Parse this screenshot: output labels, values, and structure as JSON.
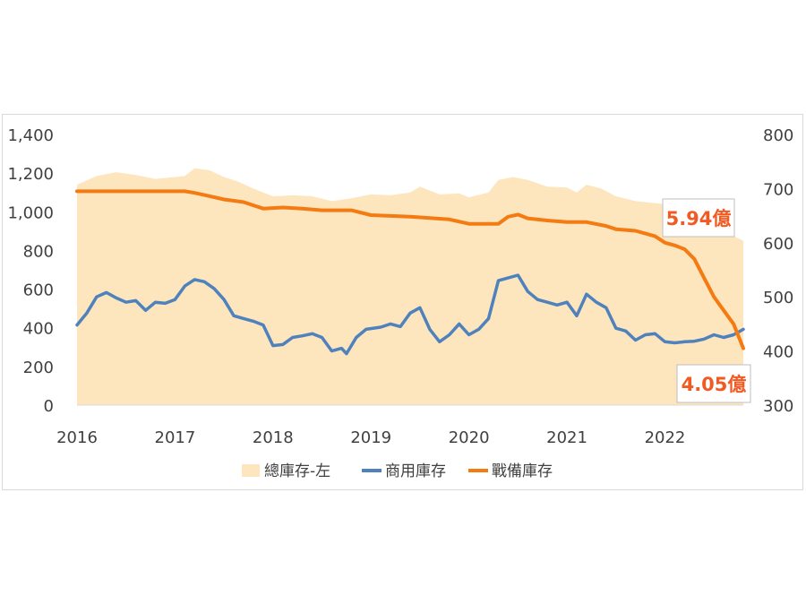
{
  "colors": {
    "total_fill": "#fde6bd",
    "commercial": "#4f81bd",
    "strategic": "#f47a12",
    "callout_text": "#f15a22",
    "tick_text": "#404040"
  },
  "chart_data": {
    "type": "line",
    "x_type": "time",
    "x_ticks": [
      "2016",
      "2017",
      "2018",
      "2019",
      "2020",
      "2021",
      "2022"
    ],
    "xlim": [
      2016.0,
      2022.8
    ],
    "left_axis": {
      "ylim": [
        0,
        1400
      ],
      "ticks": [
        "0",
        "200",
        "400",
        "600",
        "800",
        "1,000",
        "1,200",
        "1,400"
      ]
    },
    "right_axis": {
      "ylim": [
        300,
        800
      ],
      "ticks": [
        "300",
        "400",
        "500",
        "600",
        "700",
        "800"
      ]
    },
    "grid": false,
    "legend_position": "bottom",
    "series": [
      {
        "name": "總庫存-左",
        "kind": "area",
        "axis": "left",
        "points": [
          [
            2016.0,
            1140
          ],
          [
            2016.2,
            1185
          ],
          [
            2016.4,
            1205
          ],
          [
            2016.6,
            1190
          ],
          [
            2016.8,
            1170
          ],
          [
            2017.0,
            1180
          ],
          [
            2017.1,
            1185
          ],
          [
            2017.2,
            1225
          ],
          [
            2017.35,
            1215
          ],
          [
            2017.5,
            1180
          ],
          [
            2017.65,
            1155
          ],
          [
            2017.8,
            1120
          ],
          [
            2018.0,
            1080
          ],
          [
            2018.2,
            1085
          ],
          [
            2018.4,
            1080
          ],
          [
            2018.6,
            1055
          ],
          [
            2018.8,
            1070
          ],
          [
            2019.0,
            1090
          ],
          [
            2019.2,
            1085
          ],
          [
            2019.4,
            1100
          ],
          [
            2019.5,
            1130
          ],
          [
            2019.7,
            1090
          ],
          [
            2019.9,
            1095
          ],
          [
            2020.0,
            1075
          ],
          [
            2020.2,
            1100
          ],
          [
            2020.3,
            1165
          ],
          [
            2020.45,
            1180
          ],
          [
            2020.6,
            1165
          ],
          [
            2020.8,
            1130
          ],
          [
            2021.0,
            1125
          ],
          [
            2021.1,
            1100
          ],
          [
            2021.2,
            1140
          ],
          [
            2021.35,
            1120
          ],
          [
            2021.5,
            1080
          ],
          [
            2021.7,
            1055
          ],
          [
            2021.9,
            1045
          ],
          [
            2022.0,
            1040
          ],
          [
            2022.1,
            1030
          ],
          [
            2022.2,
            1015
          ],
          [
            2022.3,
            980
          ],
          [
            2022.4,
            960
          ],
          [
            2022.5,
            930
          ],
          [
            2022.6,
            905
          ],
          [
            2022.7,
            875
          ],
          [
            2022.8,
            850
          ]
        ]
      },
      {
        "name": "商用庫存",
        "kind": "line",
        "axis": "right",
        "points": [
          [
            2016.0,
            448
          ],
          [
            2016.1,
            470
          ],
          [
            2016.2,
            500
          ],
          [
            2016.3,
            508
          ],
          [
            2016.4,
            498
          ],
          [
            2016.5,
            490
          ],
          [
            2016.6,
            493
          ],
          [
            2016.7,
            475
          ],
          [
            2016.8,
            490
          ],
          [
            2016.9,
            488
          ],
          [
            2017.0,
            495
          ],
          [
            2017.1,
            520
          ],
          [
            2017.2,
            532
          ],
          [
            2017.3,
            528
          ],
          [
            2017.4,
            515
          ],
          [
            2017.5,
            495
          ],
          [
            2017.6,
            465
          ],
          [
            2017.7,
            460
          ],
          [
            2017.8,
            455
          ],
          [
            2017.9,
            448
          ],
          [
            2018.0,
            410
          ],
          [
            2018.1,
            412
          ],
          [
            2018.2,
            425
          ],
          [
            2018.3,
            428
          ],
          [
            2018.4,
            432
          ],
          [
            2018.5,
            425
          ],
          [
            2018.6,
            400
          ],
          [
            2018.7,
            405
          ],
          [
            2018.75,
            395
          ],
          [
            2018.85,
            425
          ],
          [
            2018.95,
            440
          ],
          [
            2019.1,
            444
          ],
          [
            2019.2,
            450
          ],
          [
            2019.3,
            445
          ],
          [
            2019.4,
            470
          ],
          [
            2019.5,
            480
          ],
          [
            2019.6,
            440
          ],
          [
            2019.7,
            417
          ],
          [
            2019.8,
            430
          ],
          [
            2019.9,
            450
          ],
          [
            2020.0,
            430
          ],
          [
            2020.1,
            440
          ],
          [
            2020.2,
            460
          ],
          [
            2020.3,
            530
          ],
          [
            2020.4,
            535
          ],
          [
            2020.5,
            540
          ],
          [
            2020.6,
            510
          ],
          [
            2020.7,
            495
          ],
          [
            2020.8,
            490
          ],
          [
            2020.9,
            485
          ],
          [
            2021.0,
            490
          ],
          [
            2021.1,
            465
          ],
          [
            2021.2,
            505
          ],
          [
            2021.3,
            490
          ],
          [
            2021.4,
            480
          ],
          [
            2021.5,
            442
          ],
          [
            2021.6,
            437
          ],
          [
            2021.7,
            420
          ],
          [
            2021.8,
            430
          ],
          [
            2021.9,
            432
          ],
          [
            2022.0,
            417
          ],
          [
            2022.1,
            415
          ],
          [
            2022.2,
            417
          ],
          [
            2022.3,
            418
          ],
          [
            2022.4,
            422
          ],
          [
            2022.5,
            430
          ],
          [
            2022.6,
            425
          ],
          [
            2022.7,
            430
          ],
          [
            2022.75,
            435
          ],
          [
            2022.8,
            440
          ]
        ]
      },
      {
        "name": "戰備庫存",
        "kind": "line",
        "axis": "right",
        "points": [
          [
            2016.0,
            695
          ],
          [
            2017.1,
            695
          ],
          [
            2017.2,
            692
          ],
          [
            2017.3,
            688
          ],
          [
            2017.5,
            680
          ],
          [
            2017.7,
            675
          ],
          [
            2017.9,
            663
          ],
          [
            2018.1,
            665
          ],
          [
            2018.3,
            663
          ],
          [
            2018.5,
            660
          ],
          [
            2018.8,
            660
          ],
          [
            2019.0,
            651
          ],
          [
            2019.4,
            648
          ],
          [
            2019.8,
            643
          ],
          [
            2020.0,
            635
          ],
          [
            2020.3,
            635
          ],
          [
            2020.4,
            648
          ],
          [
            2020.5,
            652
          ],
          [
            2020.6,
            645
          ],
          [
            2020.8,
            641
          ],
          [
            2021.0,
            638
          ],
          [
            2021.2,
            638
          ],
          [
            2021.4,
            631
          ],
          [
            2021.5,
            625
          ],
          [
            2021.7,
            622
          ],
          [
            2021.9,
            612
          ],
          [
            2022.0,
            600
          ],
          [
            2022.1,
            595
          ],
          [
            2022.2,
            588
          ],
          [
            2022.3,
            570
          ],
          [
            2022.4,
            535
          ],
          [
            2022.5,
            500
          ],
          [
            2022.6,
            475
          ],
          [
            2022.7,
            450
          ],
          [
            2022.8,
            405
          ]
        ]
      }
    ],
    "annotations": [
      {
        "text": "5.94億",
        "x": 2022.65,
        "y": 594,
        "axis": "right"
      },
      {
        "text": "4.05億",
        "x": 2022.75,
        "y": 405,
        "axis": "right"
      }
    ]
  }
}
